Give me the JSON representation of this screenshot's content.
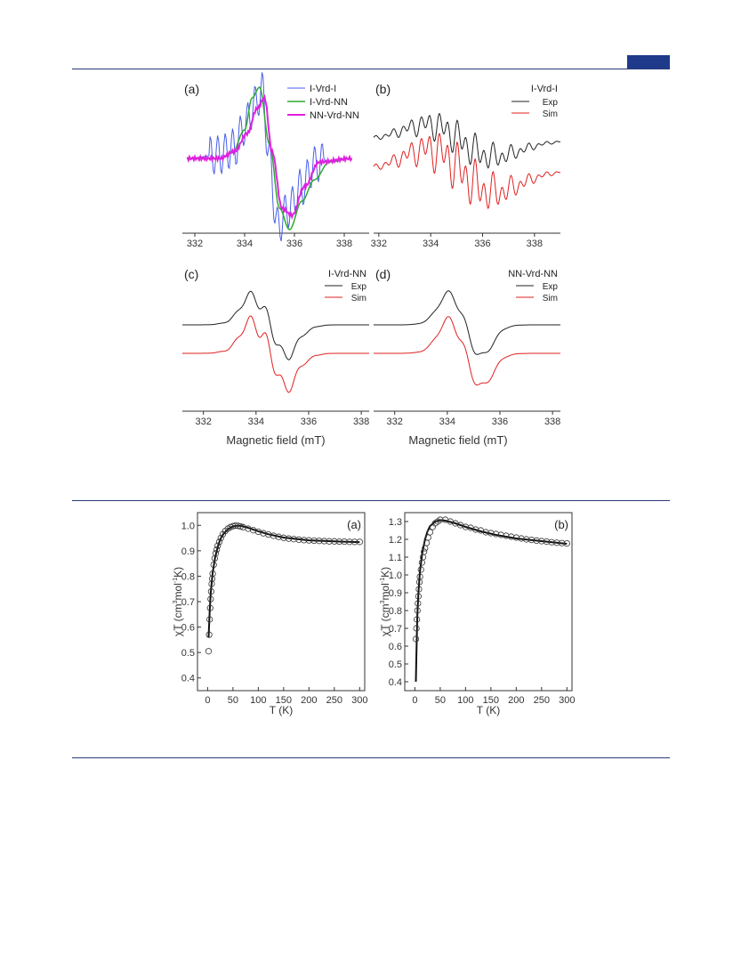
{
  "page": {
    "accent_color": "#1f3a8a",
    "rule_color": "#2a3a78"
  },
  "figure_epr": {
    "xlabel": "Magnetic field (mT)",
    "panels": [
      {
        "tag": "(a)",
        "legend_entries": [
          "I-Vrd-I",
          "I-Vrd-NN",
          "NN-Vrd-NN"
        ]
      },
      {
        "tag": "(b)",
        "compound": "I-Vrd-I",
        "legend_entries": [
          "Exp",
          "Sim"
        ]
      },
      {
        "tag": "(c)",
        "compound": "I-Vrd-NN",
        "legend_entries": [
          "Exp",
          "Sim"
        ]
      },
      {
        "tag": "(d)",
        "compound": "NN-Vrd-NN",
        "legend_entries": [
          "Exp",
          "Sim"
        ]
      }
    ]
  },
  "figure_chiT": {
    "xlabel": "T (K)",
    "ylabel_parts": [
      "χT (cm",
      "3",
      "mol",
      "-1",
      "K)"
    ],
    "panels": [
      {
        "tag": "(a)"
      },
      {
        "tag": "(b)"
      }
    ]
  },
  "chart_data": [
    {
      "type": "line",
      "panel": "(a)",
      "xlabel": "",
      "ylabel": "",
      "xlim": [
        331.5,
        339
      ],
      "x_ticks": [
        "332",
        "334",
        "336",
        "338"
      ],
      "series": [
        {
          "name": "I-Vrd-I",
          "color": "#4a5ee8",
          "x": [
            333.0,
            333.6,
            334.0,
            334.4,
            334.7,
            335.0,
            335.3,
            335.8,
            336.3,
            336.8,
            337.0
          ],
          "y": [
            0.05,
            0.15,
            0.45,
            0.75,
            0.95,
            0,
            -0.95,
            -0.7,
            -0.4,
            -0.1,
            -0.05
          ]
        },
        {
          "name": "I-Vrd-NN",
          "color": "#2eaa2e",
          "x": [
            333.0,
            333.5,
            334.0,
            334.3,
            334.6,
            335.0,
            335.4,
            335.8,
            336.3,
            336.8,
            337.4
          ],
          "y": [
            0,
            0.08,
            0.4,
            0.85,
            1.0,
            0.2,
            -0.7,
            -1.0,
            -0.6,
            -0.3,
            -0.05
          ]
        },
        {
          "name": "NN-Vrd-NN",
          "color": "#e020e0",
          "x": [
            333.0,
            333.6,
            334.1,
            334.5,
            334.8,
            335.1,
            335.5,
            335.9,
            336.4,
            337.0
          ],
          "y": [
            0,
            0.1,
            0.35,
            0.7,
            0.85,
            0.1,
            -0.7,
            -0.8,
            -0.4,
            -0.05
          ]
        }
      ]
    },
    {
      "type": "line",
      "panel": "(b)",
      "xlim": [
        331.8,
        339
      ],
      "x_ticks": [
        "332",
        "334",
        "336",
        "338"
      ],
      "series": [
        {
          "name": "Exp",
          "color": "#222222"
        },
        {
          "name": "Sim",
          "color": "#e02020"
        }
      ]
    },
    {
      "type": "line",
      "panel": "(c)",
      "xlim": [
        331.2,
        338.3
      ],
      "x_ticks": [
        "332",
        "334",
        "336",
        "338"
      ],
      "series": [
        {
          "name": "Exp",
          "color": "#222222"
        },
        {
          "name": "Sim",
          "color": "#e02020"
        }
      ]
    },
    {
      "type": "line",
      "panel": "(d)",
      "xlim": [
        331.2,
        338.3
      ],
      "x_ticks": [
        "332",
        "334",
        "336",
        "338"
      ],
      "series": [
        {
          "name": "Exp",
          "color": "#222222"
        },
        {
          "name": "Sim",
          "color": "#e02020"
        }
      ]
    },
    {
      "type": "scatter",
      "panel": "(a)",
      "xlabel": "T (K)",
      "ylabel": "χT (cm3mol-1K)",
      "xlim": [
        -20,
        310
      ],
      "ylim": [
        0.35,
        1.05
      ],
      "x_ticks": [
        0,
        50,
        100,
        150,
        200,
        250,
        300
      ],
      "y_ticks": [
        0.4,
        0.5,
        0.6,
        0.7,
        0.8,
        0.9,
        1.0
      ],
      "series": [
        {
          "name": "",
          "marker": "open-circle",
          "x": [
            2,
            3,
            4,
            5,
            6,
            7,
            8,
            9,
            10,
            12,
            14,
            16,
            18,
            20,
            23,
            26,
            30,
            35,
            40,
            45,
            50,
            55,
            60,
            65,
            70,
            80,
            90,
            100,
            110,
            120,
            130,
            140,
            150,
            160,
            170,
            180,
            190,
            200,
            210,
            220,
            230,
            240,
            250,
            260,
            270,
            280,
            290,
            300
          ],
          "y": [
            0.505,
            0.57,
            0.63,
            0.675,
            0.71,
            0.74,
            0.77,
            0.79,
            0.81,
            0.845,
            0.87,
            0.89,
            0.905,
            0.92,
            0.935,
            0.95,
            0.965,
            0.978,
            0.987,
            0.993,
            0.997,
            0.999,
            0.998,
            0.996,
            0.993,
            0.987,
            0.981,
            0.975,
            0.969,
            0.964,
            0.959,
            0.955,
            0.951,
            0.948,
            0.946,
            0.944,
            0.942,
            0.941,
            0.94,
            0.939,
            0.938,
            0.937,
            0.937,
            0.936,
            0.936,
            0.935,
            0.935,
            0.935
          ]
        },
        {
          "name": "",
          "line": "fit",
          "x": [
            2,
            4,
            6,
            8,
            10,
            15,
            20,
            25,
            30,
            40,
            50,
            60,
            70,
            80,
            100,
            120,
            150,
            200,
            250,
            300
          ],
          "y": [
            0.56,
            0.66,
            0.73,
            0.775,
            0.815,
            0.875,
            0.915,
            0.945,
            0.963,
            0.985,
            0.996,
            0.999,
            0.996,
            0.99,
            0.977,
            0.965,
            0.952,
            0.941,
            0.937,
            0.934
          ]
        }
      ]
    },
    {
      "type": "scatter",
      "panel": "(b)",
      "xlabel": "T (K)",
      "ylabel": "χT (cm3mol-1K)",
      "xlim": [
        -20,
        310
      ],
      "ylim": [
        0.35,
        1.35
      ],
      "x_ticks": [
        0,
        50,
        100,
        150,
        200,
        250,
        300
      ],
      "y_ticks": [
        0.4,
        0.5,
        0.6,
        0.7,
        0.8,
        0.9,
        1.0,
        1.1,
        1.2,
        1.3
      ],
      "series": [
        {
          "name": "",
          "marker": "open-circle",
          "x": [
            2,
            3,
            4,
            5,
            6,
            7,
            8,
            9,
            10,
            12,
            14,
            16,
            18,
            20,
            23,
            26,
            30,
            35,
            40,
            45,
            50,
            60,
            70,
            80,
            90,
            100,
            110,
            120,
            130,
            140,
            150,
            160,
            170,
            180,
            190,
            200,
            210,
            220,
            230,
            240,
            250,
            260,
            270,
            280,
            290,
            300
          ],
          "y": [
            0.64,
            0.7,
            0.75,
            0.8,
            0.84,
            0.88,
            0.92,
            0.96,
            0.99,
            1.03,
            1.07,
            1.1,
            1.13,
            1.15,
            1.18,
            1.21,
            1.24,
            1.27,
            1.29,
            1.3,
            1.31,
            1.31,
            1.3,
            1.29,
            1.28,
            1.27,
            1.265,
            1.255,
            1.25,
            1.24,
            1.235,
            1.23,
            1.225,
            1.22,
            1.215,
            1.21,
            1.205,
            1.2,
            1.197,
            1.193,
            1.19,
            1.187,
            1.184,
            1.181,
            1.179,
            1.177
          ]
        },
        {
          "name": "",
          "line": "fit",
          "x": [
            2,
            3,
            4,
            5,
            7,
            10,
            15,
            20,
            25,
            30,
            40,
            50,
            60,
            80,
            100,
            130,
            160,
            200,
            250,
            300
          ],
          "y": [
            0.4,
            0.55,
            0.68,
            0.78,
            0.9,
            1.02,
            1.13,
            1.2,
            1.245,
            1.275,
            1.3,
            1.308,
            1.305,
            1.29,
            1.27,
            1.245,
            1.225,
            1.205,
            1.19,
            1.175
          ]
        }
      ]
    }
  ]
}
